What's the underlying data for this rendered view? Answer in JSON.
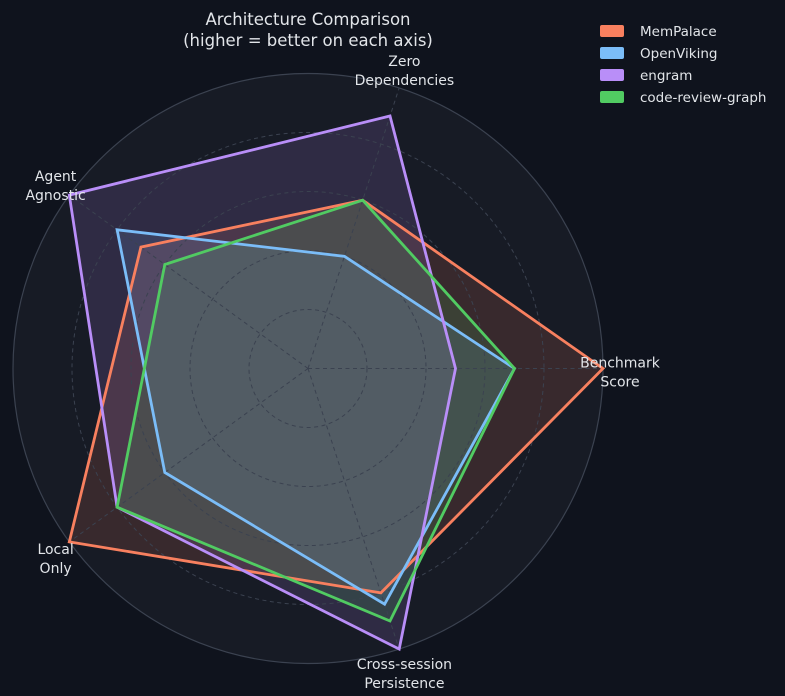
{
  "title": {
    "line1": "Architecture Comparison",
    "line2": "(higher = better on each axis)"
  },
  "chart_data": {
    "type": "radar",
    "title": "Architecture Comparison (higher = better on each axis)",
    "categories": [
      "Benchmark Score",
      "Zero Dependencies",
      "Agent Agnostic",
      "Local Only",
      "Cross-session Persistence"
    ],
    "category_label_lines": [
      [
        "Benchmark",
        "Score"
      ],
      [
        "Zero",
        "Dependencies"
      ],
      [
        "Agent",
        "Agnostic"
      ],
      [
        "Local",
        "Only"
      ],
      [
        "Cross-session",
        "Persistence"
      ]
    ],
    "angles_deg": [
      0,
      72,
      144,
      216,
      288
    ],
    "rmax": 10,
    "grid_interval": 2,
    "grid": true,
    "radial_tick_labels": false,
    "fill_opacity": 0.15,
    "legend_position": "top-right",
    "series": [
      {
        "name": "MemPalace",
        "color": "#f8805f",
        "values": [
          10,
          6,
          7,
          10,
          8
        ]
      },
      {
        "name": "OpenViking",
        "color": "#7bbdf8",
        "values": [
          7,
          4,
          8,
          6,
          8.4
        ]
      },
      {
        "name": "engram",
        "color": "#b98ef8",
        "values": [
          5,
          9,
          10,
          8,
          10
        ]
      },
      {
        "name": "code-review-graph",
        "color": "#51cb62",
        "values": [
          7,
          6,
          6,
          8,
          9
        ]
      }
    ]
  },
  "colors": {
    "background": "#0f131d",
    "plot_background": "#171b25",
    "grid": "#3b4250",
    "text": "#e2e5e9"
  }
}
